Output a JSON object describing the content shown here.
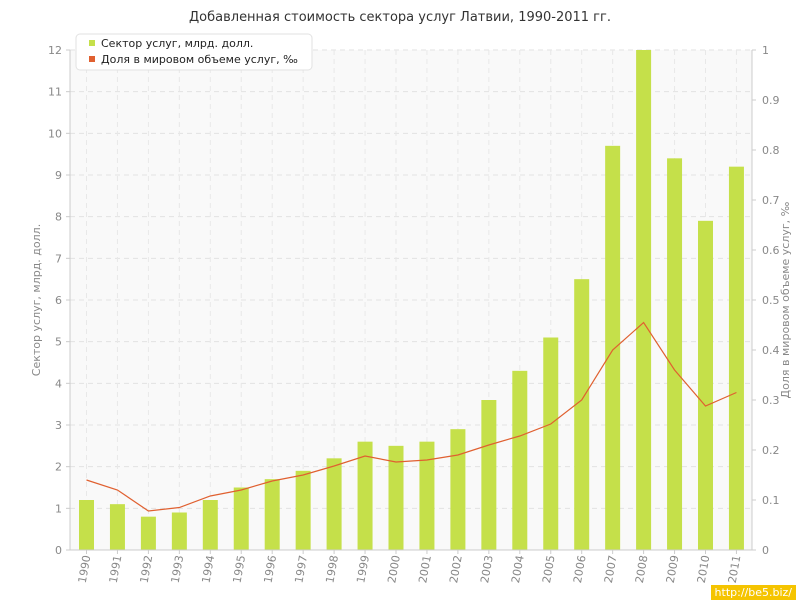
{
  "chart_data": {
    "type": "bar",
    "title": "Добавленная стоимость сектора услуг Латвии, 1990-2011 гг.",
    "categories": [
      "1990",
      "1991",
      "1992",
      "1993",
      "1994",
      "1995",
      "1996",
      "1997",
      "1998",
      "1999",
      "2000",
      "2001",
      "2002",
      "2003",
      "2004",
      "2005",
      "2006",
      "2007",
      "2008",
      "2009",
      "2010",
      "2011"
    ],
    "series": [
      {
        "name": "Сектор услуг, млрд. долл.",
        "type": "bar",
        "axis": "left",
        "color": "#c5e04a",
        "values": [
          1.2,
          1.1,
          0.8,
          0.9,
          1.2,
          1.5,
          1.7,
          1.9,
          2.2,
          2.6,
          2.5,
          2.6,
          2.9,
          3.6,
          4.3,
          5.1,
          6.5,
          9.7,
          12.0,
          9.4,
          7.9,
          9.2
        ]
      },
      {
        "name": "Доля в мировом объеме услуг, ‰",
        "type": "line",
        "axis": "right",
        "color": "#e06030",
        "values": [
          0.14,
          0.12,
          0.078,
          0.085,
          0.108,
          0.12,
          0.138,
          0.15,
          0.168,
          0.188,
          0.176,
          0.18,
          0.19,
          0.21,
          0.228,
          0.252,
          0.3,
          0.4,
          0.455,
          0.36,
          0.288,
          0.315
        ]
      }
    ],
    "ylabel": "Сектор услуг, млрд. долл.",
    "ylabel_right": "Доля в мировом объеме услуг, ‰",
    "ylim": [
      0,
      12
    ],
    "ylim_right": [
      0,
      1
    ],
    "yticks": [
      "0",
      "1",
      "2",
      "3",
      "4",
      "5",
      "6",
      "7",
      "8",
      "9",
      "10",
      "11",
      "12"
    ],
    "yticks_right": [
      "0",
      "0.1",
      "0.2",
      "0.3",
      "0.4",
      "0.5",
      "0.6",
      "0.7",
      "0.8",
      "0.9",
      "1"
    ],
    "legend_position": "top-left",
    "grid": true
  },
  "watermark": "http://be5.biz/"
}
